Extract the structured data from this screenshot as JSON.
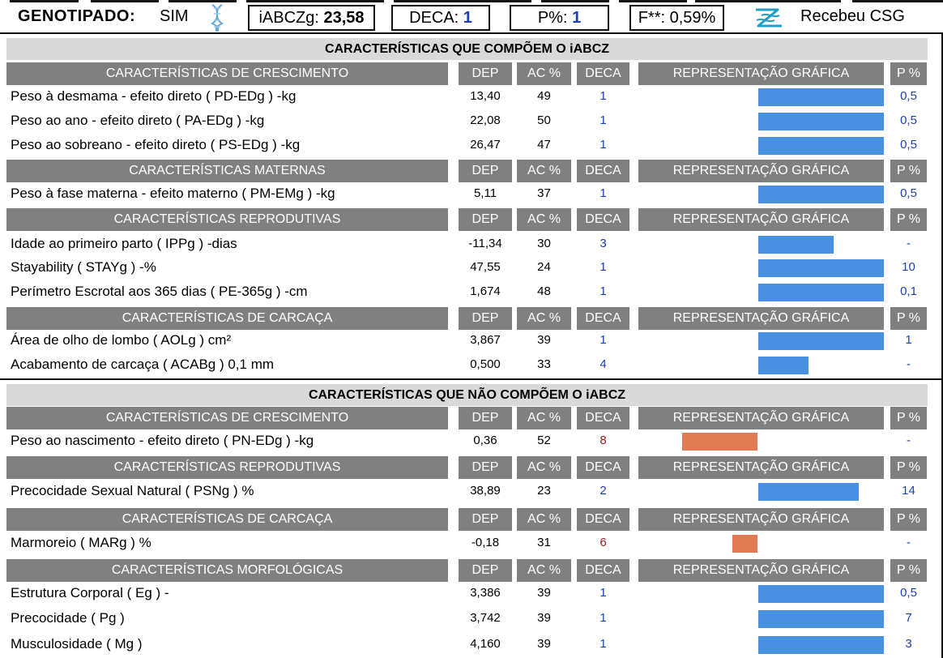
{
  "header": {
    "genotipado_label": "GENOTIPADO:",
    "genotipado_value": "SIM",
    "iabczg_label": "iABCZg:",
    "iabczg_value": "23,58",
    "deca_label": "DECA:",
    "deca_value": "1",
    "p_label": "P%:",
    "p_value": "1",
    "f_label": "F**:",
    "f_value": "0,59%",
    "csg_label": "Recebeu CSG"
  },
  "columns": {
    "dep": "DEP",
    "ac": "AC %",
    "deca": "DECA",
    "rep": "REPRESENTAÇÃO GRÁFICA",
    "p": "P %"
  },
  "colors": {
    "good_bar": "#4a90e0",
    "bad_bar": "#e07b54",
    "deca_good": "#1f3fae",
    "deca_bad": "#9b1b1b",
    "header_gray": "#808080",
    "title_gray": "#d9d9d9"
  },
  "sections": [
    {
      "title": "CARACTERÍSTICAS QUE COMPÕEM O iABCZ",
      "groups": [
        {
          "name": "CARACTERÍSTICAS DE CRESCIMENTO",
          "rows": [
            {
              "label": "Peso à desmama - efeito direto ( PD-EDg ) -kg",
              "dep": "13,40",
              "ac": "49",
              "deca": "1",
              "p": "0,5",
              "bar_from": 0.5,
              "bar_to": 1.0,
              "bar_kind": "good"
            },
            {
              "label": "Peso ao ano - efeito direto ( PA-EDg ) -kg",
              "dep": "22,08",
              "ac": "50",
              "deca": "1",
              "p": "0,5",
              "bar_from": 0.5,
              "bar_to": 1.0,
              "bar_kind": "good"
            },
            {
              "label": "Peso ao sobreano - efeito direto ( PS-EDg ) -kg",
              "dep": "26,47",
              "ac": "47",
              "deca": "1",
              "p": "0,5",
              "bar_from": 0.5,
              "bar_to": 1.0,
              "bar_kind": "good"
            }
          ]
        },
        {
          "name": "CARACTERÍSTICAS MATERNAS",
          "rows": [
            {
              "label": "Peso à fase materna - efeito materno ( PM-EMg ) -kg",
              "dep": "5,11",
              "ac": "37",
              "deca": "1",
              "p": "0,5",
              "bar_from": 0.5,
              "bar_to": 1.0,
              "bar_kind": "good"
            }
          ]
        },
        {
          "name": "CARACTERÍSTICAS REPRODUTIVAS",
          "rows": [
            {
              "label": "Idade ao primeiro parto ( IPPg ) -dias",
              "dep": "-11,34",
              "ac": "30",
              "deca": "3",
              "p": "-",
              "bar_from": 0.5,
              "bar_to": 0.8,
              "bar_kind": "good"
            },
            {
              "label": "Stayability ( STAYg ) -%",
              "dep": "47,55",
              "ac": "24",
              "deca": "1",
              "p": "10",
              "bar_from": 0.5,
              "bar_to": 1.0,
              "bar_kind": "good"
            },
            {
              "label": "Perímetro Escrotal aos 365 dias ( PE-365g ) -cm",
              "dep": "1,674",
              "ac": "48",
              "deca": "1",
              "p": "0,1",
              "bar_from": 0.5,
              "bar_to": 1.0,
              "bar_kind": "good"
            }
          ]
        },
        {
          "name": "CARACTERÍSTICAS DE CARCAÇA",
          "rows": [
            {
              "label": "Área de olho de lombo ( AOLg ) cm²",
              "dep": "3,867",
              "ac": "39",
              "deca": "1",
              "p": "1",
              "bar_from": 0.5,
              "bar_to": 1.0,
              "bar_kind": "good"
            },
            {
              "label": "Acabamento de carcaça ( ACABg ) 0,1 mm",
              "dep": "0,500",
              "ac": "33",
              "deca": "4",
              "p": "-",
              "bar_from": 0.5,
              "bar_to": 0.7,
              "bar_kind": "good"
            }
          ]
        }
      ]
    },
    {
      "title": "CARACTERÍSTICAS QUE NÃO COMPÕEM O iABCZ",
      "groups": [
        {
          "name": "CARACTERÍSTICAS DE CRESCIMENTO",
          "rows": [
            {
              "label": "Peso ao nascimento - efeito direto ( PN-EDg ) -kg",
              "dep": "0,36",
              "ac": "52",
              "deca": "8",
              "p": "-",
              "bar_from": 0.2,
              "bar_to": 0.5,
              "bar_kind": "bad"
            }
          ]
        },
        {
          "name": "CARACTERÍSTICAS REPRODUTIVAS",
          "rows": [
            {
              "label": "Precocidade Sexual Natural ( PSNg ) %",
              "dep": "38,89",
              "ac": "23",
              "deca": "2",
              "p": "14",
              "bar_from": 0.5,
              "bar_to": 0.9,
              "bar_kind": "good"
            }
          ]
        },
        {
          "name": "CARACTERÍSTICAS DE CARCAÇA",
          "rows": [
            {
              "label": "Marmoreio ( MARg ) %",
              "dep": "-0,18",
              "ac": "31",
              "deca": "6",
              "p": "-",
              "bar_from": 0.4,
              "bar_to": 0.5,
              "bar_kind": "bad"
            }
          ]
        },
        {
          "name": "CARACTERÍSTICAS MORFOLÓGICAS",
          "rows": [
            {
              "label": "Estrutura Corporal ( Eg ) -",
              "dep": "3,386",
              "ac": "39",
              "deca": "1",
              "p": "0,5",
              "bar_from": 0.5,
              "bar_to": 1.0,
              "bar_kind": "good"
            },
            {
              "label": "Precocidade ( Pg )",
              "dep": "3,742",
              "ac": "39",
              "deca": "1",
              "p": "7",
              "bar_from": 0.5,
              "bar_to": 1.0,
              "bar_kind": "good"
            },
            {
              "label": "Musculosidade ( Mg )",
              "dep": "4,160",
              "ac": "39",
              "deca": "1",
              "p": "3",
              "bar_from": 0.5,
              "bar_to": 1.0,
              "bar_kind": "good"
            }
          ]
        }
      ]
    }
  ]
}
